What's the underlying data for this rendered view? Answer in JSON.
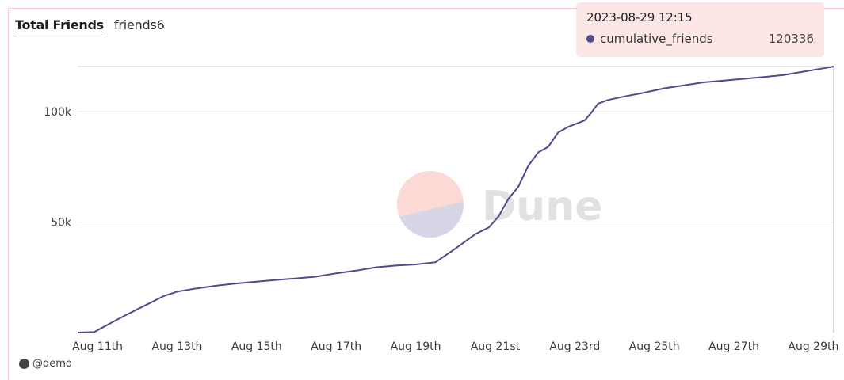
{
  "header": {
    "title": "Total Friends",
    "subtitle": "friends6"
  },
  "tooltip": {
    "time": "2023-08-29 12:15",
    "series_name": "cumulative_friends",
    "value": "120336",
    "dot_color": "#4f4a8a"
  },
  "footer": {
    "author": "@demo"
  },
  "watermark": {
    "text": "Dune"
  },
  "colors": {
    "line": "#4f4a8a",
    "grid": "#ececec",
    "hover_line": "#b0b0b0"
  },
  "chart_data": {
    "type": "line",
    "title": "Total Friends",
    "xlabel": "",
    "ylabel": "",
    "ylim": [
      0,
      120336
    ],
    "y_ticks": [
      50000,
      100000
    ],
    "y_tick_labels": [
      "50k",
      "100k"
    ],
    "x_ticks": [
      "2023-08-11",
      "2023-08-13",
      "2023-08-15",
      "2023-08-17",
      "2023-08-19",
      "2023-08-21",
      "2023-08-23",
      "2023-08-25",
      "2023-08-27",
      "2023-08-29"
    ],
    "x_tick_labels": [
      "Aug 11th",
      "Aug 13th",
      "Aug 15th",
      "Aug 17th",
      "Aug 19th",
      "Aug 21st",
      "Aug 23rd",
      "Aug 25th",
      "Aug 27th",
      "Aug 29th"
    ],
    "grid": true,
    "hover_x": "2023-08-29 12:15",
    "series": [
      {
        "name": "cumulative_friends",
        "x": [
          "2023-08-10 12:00",
          "2023-08-10 22:00",
          "2023-08-11 06:00",
          "2023-08-11 16:00",
          "2023-08-12 00:00",
          "2023-08-12 08:00",
          "2023-08-12 16:00",
          "2023-08-13 00:00",
          "2023-08-13 12:00",
          "2023-08-14 00:00",
          "2023-08-14 12:00",
          "2023-08-15 00:00",
          "2023-08-15 12:00",
          "2023-08-16 00:00",
          "2023-08-16 12:00",
          "2023-08-17 00:00",
          "2023-08-17 12:00",
          "2023-08-18 00:00",
          "2023-08-18 12:00",
          "2023-08-19 00:00",
          "2023-08-19 12:00",
          "2023-08-20 00:00",
          "2023-08-20 12:00",
          "2023-08-20 20:00",
          "2023-08-21 02:00",
          "2023-08-21 08:00",
          "2023-08-21 14:00",
          "2023-08-21 20:00",
          "2023-08-22 02:00",
          "2023-08-22 08:00",
          "2023-08-22 14:00",
          "2023-08-22 20:00",
          "2023-08-23 06:00",
          "2023-08-23 10:00",
          "2023-08-23 14:00",
          "2023-08-23 20:00",
          "2023-08-24 06:00",
          "2023-08-24 18:00",
          "2023-08-25 06:00",
          "2023-08-25 18:00",
          "2023-08-26 06:00",
          "2023-08-26 18:00",
          "2023-08-27 06:00",
          "2023-08-27 18:00",
          "2023-08-28 06:00",
          "2023-08-28 18:00",
          "2023-08-29 06:00",
          "2023-08-29 12:15"
        ],
        "y": [
          0,
          200,
          3500,
          7500,
          10500,
          13500,
          16500,
          18500,
          20000,
          21200,
          22200,
          23000,
          23800,
          24500,
          25300,
          26800,
          28000,
          29500,
          30300,
          30800,
          31800,
          38000,
          44500,
          47500,
          52500,
          60500,
          66000,
          75500,
          81500,
          84000,
          90500,
          93000,
          96000,
          99500,
          103500,
          105200,
          106800,
          108500,
          110500,
          111800,
          113200,
          114000,
          114800,
          115600,
          116500,
          118000,
          119500,
          120336
        ]
      }
    ]
  }
}
